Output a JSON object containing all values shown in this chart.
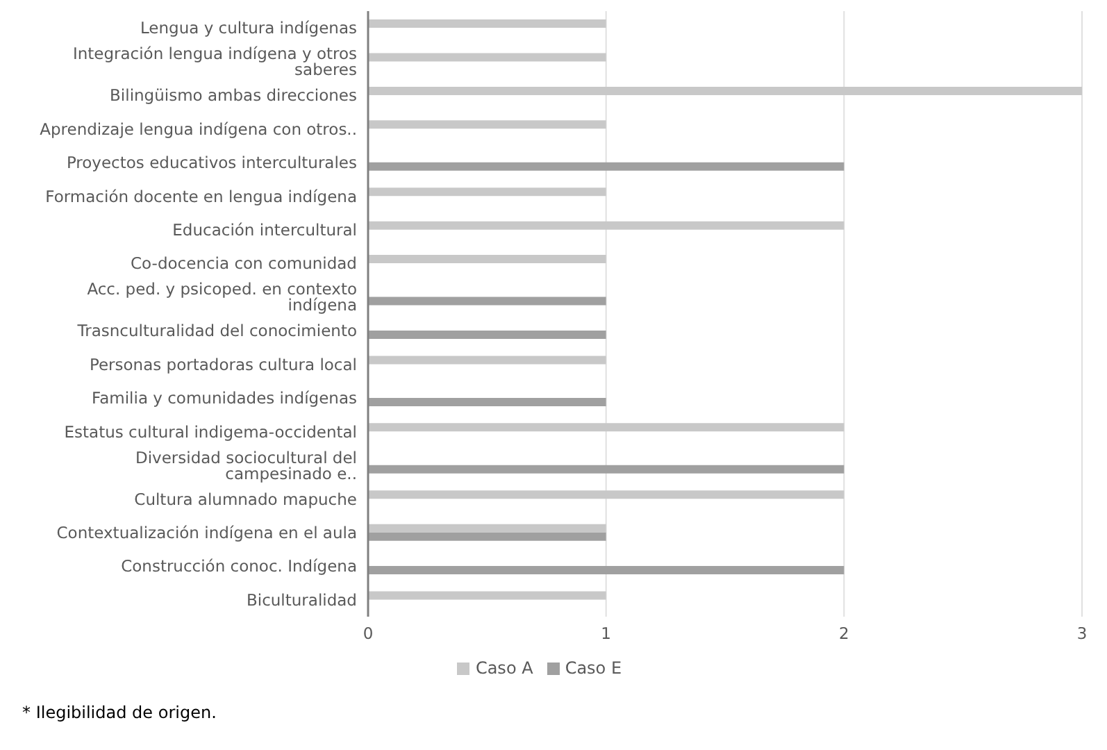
{
  "chart_data": {
    "type": "bar",
    "orientation": "horizontal",
    "categories": [
      "Lengua y cultura indígenas",
      "Integración lengua indígena y otros saberes",
      "Bilingüismo ambas direcciones",
      "Aprendizaje lengua indígena con otros..",
      "Proyectos educativos interculturales",
      "Formación docente en lengua indígena",
      "Educación intercultural",
      "Co-docencia con comunidad",
      "Acc. ped. y psicoped. en contexto indígena",
      "Trasnculturalidad del conocimiento",
      "Personas portadoras cultura local",
      "Familia y comunidades indígenas",
      "Estatus cultural indigema-occidental",
      "Diversidad sociocultural del campesinado e..",
      "Cultura alumnado mapuche",
      "Contextualización indígena en el aula",
      "Construcción conoc. Indígena",
      "Biculturalidad"
    ],
    "series": [
      {
        "name": "Caso A",
        "color": "#c8c8c8",
        "values": [
          1,
          1,
          3,
          1,
          null,
          1,
          2,
          1,
          null,
          null,
          1,
          null,
          2,
          null,
          2,
          1,
          null,
          1
        ]
      },
      {
        "name": "Caso E",
        "color": "#a0a0a0",
        "values": [
          null,
          null,
          null,
          null,
          2,
          null,
          null,
          null,
          1,
          1,
          null,
          1,
          null,
          2,
          null,
          1,
          2,
          null
        ]
      }
    ],
    "xlim": [
      0,
      3
    ],
    "xticks": [
      0,
      1,
      2,
      3
    ],
    "grid": "x",
    "legend": "bottom",
    "annotations": [
      "* Ilegibilidad de origen."
    ]
  }
}
